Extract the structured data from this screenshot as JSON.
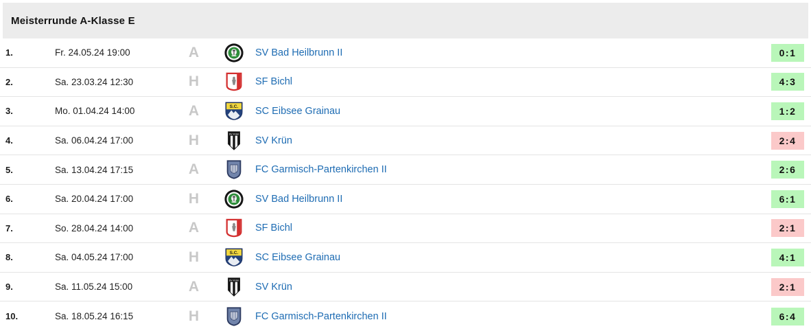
{
  "header": {
    "title": "Meisterrunde A-Klasse E"
  },
  "colors": {
    "header_bg": "#ececec",
    "row_border": "#e4e4e4",
    "team_link_blue": "#1e6cb3",
    "home_away_gray": "#c8c8c8",
    "win_badge_bg": "#b9f6b9",
    "loss_badge_bg": "#fbc9c9",
    "score_text": "#111111"
  },
  "rows": [
    {
      "nr": "1.",
      "date": "Fr. 24.05.24 19:00",
      "venue": "A",
      "logo": "logo-sv-bad-heilbrunn",
      "team": "SV Bad Heilbrunn II",
      "score": "0:1",
      "outcome": "win"
    },
    {
      "nr": "2.",
      "date": "Sa. 23.03.24 12:30",
      "venue": "H",
      "logo": "logo-sf-bichl",
      "team": "SF Bichl",
      "score": "4:3",
      "outcome": "win"
    },
    {
      "nr": "3.",
      "date": "Mo. 01.04.24 14:00",
      "venue": "A",
      "logo": "logo-sc-eibsee",
      "team": "SC Eibsee Grainau",
      "score": "1:2",
      "outcome": "win"
    },
    {
      "nr": "4.",
      "date": "Sa. 06.04.24 17:00",
      "venue": "H",
      "logo": "logo-sv-kruen",
      "team": "SV Krün",
      "score": "2:4",
      "outcome": "loss"
    },
    {
      "nr": "5.",
      "date": "Sa. 13.04.24 17:15",
      "venue": "A",
      "logo": "logo-fc-garmisch",
      "team": "FC Garmisch-Partenkirchen II",
      "score": "2:6",
      "outcome": "win"
    },
    {
      "nr": "6.",
      "date": "Sa. 20.04.24 17:00",
      "venue": "H",
      "logo": "logo-sv-bad-heilbrunn",
      "team": "SV Bad Heilbrunn II",
      "score": "6:1",
      "outcome": "win"
    },
    {
      "nr": "7.",
      "date": "So. 28.04.24 14:00",
      "venue": "A",
      "logo": "logo-sf-bichl",
      "team": "SF Bichl",
      "score": "2:1",
      "outcome": "loss"
    },
    {
      "nr": "8.",
      "date": "Sa. 04.05.24 17:00",
      "venue": "H",
      "logo": "logo-sc-eibsee",
      "team": "SC Eibsee Grainau",
      "score": "4:1",
      "outcome": "win"
    },
    {
      "nr": "9.",
      "date": "Sa. 11.05.24 15:00",
      "venue": "A",
      "logo": "logo-sv-kruen",
      "team": "SV Krün",
      "score": "2:1",
      "outcome": "loss"
    },
    {
      "nr": "10.",
      "date": "Sa. 18.05.24 16:15",
      "venue": "H",
      "logo": "logo-fc-garmisch",
      "team": "FC Garmisch-Partenkirchen II",
      "score": "6:4",
      "outcome": "win"
    }
  ]
}
